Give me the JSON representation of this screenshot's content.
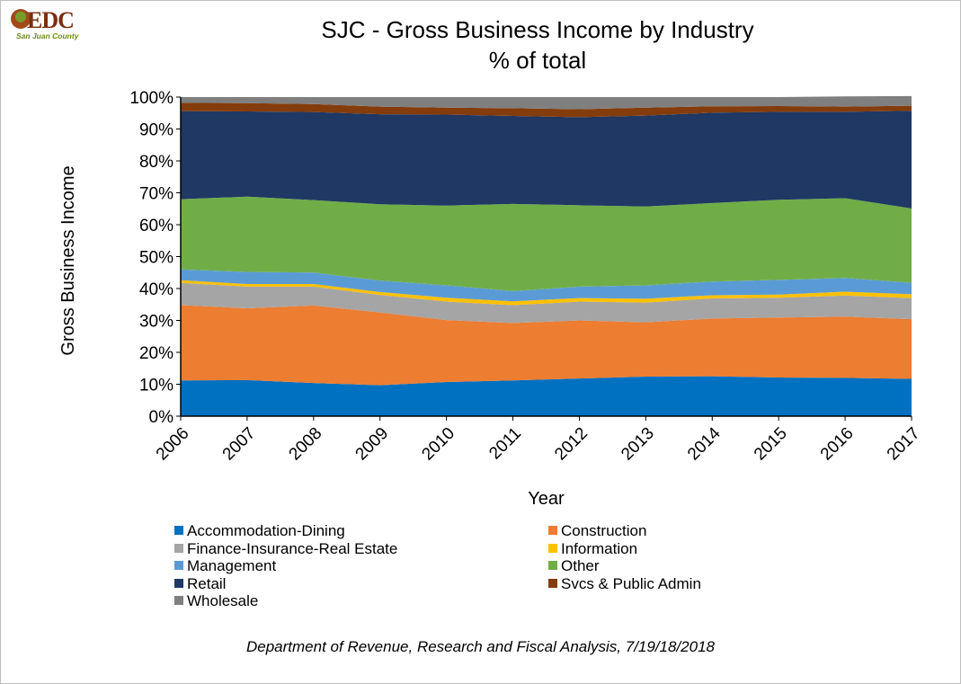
{
  "logo": {
    "text": "EDC",
    "subtext": "San Juan County"
  },
  "title": {
    "line1": "SJC - Gross Business Income by Industry",
    "line2": "% of total"
  },
  "footnote": "Department of Revenue, Research and Fiscal Analysis, 7/19/18/2018",
  "chart_data": {
    "type": "area",
    "stacked": true,
    "percent": true,
    "x": [
      "2006",
      "2007",
      "2008",
      "2009",
      "2010",
      "2011",
      "2012",
      "2013",
      "2014",
      "2015",
      "2016",
      "2017"
    ],
    "xlabel": "Year",
    "ylabel": "Gross Business Income",
    "ylim": [
      0,
      100
    ],
    "yticks": [
      "0%",
      "10%",
      "20%",
      "30%",
      "40%",
      "50%",
      "60%",
      "70%",
      "80%",
      "90%",
      "100%"
    ],
    "grid": false,
    "legend_position": "bottom",
    "series": [
      {
        "name": "Accommodation-Dining",
        "color": "#0070C0",
        "values": [
          11.2,
          11.3,
          10.4,
          9.7,
          10.7,
          11.2,
          11.8,
          12.4,
          12.5,
          12.1,
          12.0,
          11.7
        ]
      },
      {
        "name": "Construction",
        "color": "#ED7D31",
        "values": [
          23.6,
          22.5,
          24.3,
          22.8,
          19.4,
          18.0,
          18.2,
          17.0,
          18.1,
          18.8,
          19.2,
          18.7
        ]
      },
      {
        "name": "Finance-Insurance-Real Estate",
        "color": "#A5A5A5",
        "values": [
          7.0,
          6.8,
          5.9,
          5.5,
          5.8,
          5.6,
          5.9,
          6.2,
          6.3,
          6.2,
          6.6,
          6.6
        ]
      },
      {
        "name": "Information",
        "color": "#FFC000",
        "values": [
          0.8,
          0.8,
          0.8,
          0.9,
          1.2,
          1.2,
          1.1,
          1.2,
          1.0,
          1.0,
          1.2,
          1.2
        ]
      },
      {
        "name": "Management",
        "color": "#5B9BD5",
        "values": [
          3.4,
          3.8,
          3.6,
          3.6,
          3.9,
          3.2,
          3.6,
          4.2,
          4.3,
          4.6,
          4.3,
          3.6
        ]
      },
      {
        "name": "Other",
        "color": "#70AD47",
        "values": [
          22.0,
          23.6,
          22.7,
          23.9,
          25.0,
          27.3,
          25.5,
          24.7,
          24.6,
          25.1,
          25.0,
          23.3
        ]
      },
      {
        "name": "Retail",
        "color": "#1F3864",
        "values": [
          27.6,
          26.7,
          27.6,
          28.2,
          28.5,
          27.6,
          27.6,
          28.5,
          28.3,
          27.6,
          27.1,
          30.6
        ]
      },
      {
        "name": "Svcs & Public Admin",
        "color": "#843C0C",
        "values": [
          2.6,
          2.6,
          2.5,
          2.4,
          2.2,
          2.4,
          2.5,
          2.5,
          2.0,
          1.8,
          1.6,
          1.6
        ]
      },
      {
        "name": "Wholesale",
        "color": "#7F7F7F",
        "values": [
          1.8,
          1.9,
          2.2,
          3.0,
          3.3,
          3.5,
          3.8,
          3.3,
          2.9,
          2.8,
          3.2,
          3.0
        ]
      }
    ]
  }
}
